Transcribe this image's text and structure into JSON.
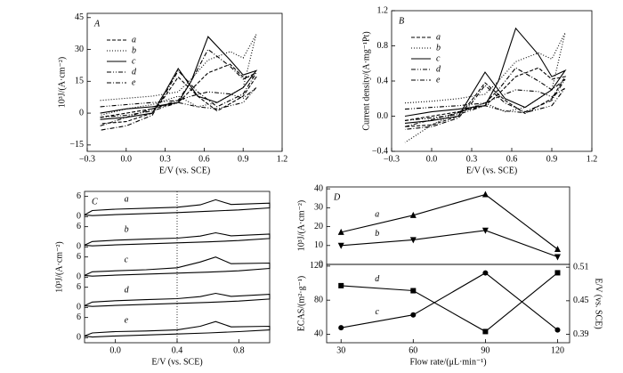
{
  "chart_data": [
    {
      "type": "line",
      "label": "A",
      "xlabel": "E/V (vs. SCE)",
      "ylabel": "10³J/(A·cm⁻²)",
      "xlim": [
        -0.3,
        1.2
      ],
      "xticks": [
        {
          "value": -0.3,
          "label": "−0.3"
        },
        {
          "value": 0,
          "label": "0.0"
        },
        0.3,
        0.6,
        0.9,
        1.2
      ],
      "ylim": [
        -18,
        47
      ],
      "yticks": [
        {
          "value": -15,
          "label": "−15"
        },
        0,
        15,
        30,
        45
      ],
      "legend": "upper left",
      "series": [
        {
          "name": "a",
          "color": "#000",
          "dash": "4,2",
          "x": [
            -0.2,
            0,
            0.2,
            0.4,
            0.5,
            0.63,
            0.8,
            0.9,
            1.0,
            0.9,
            0.7,
            0.55,
            0.4,
            0.3,
            0.2,
            0,
            -0.2
          ],
          "values": [
            -2,
            0,
            2,
            5,
            11,
            19,
            23,
            17,
            17,
            8,
            1,
            8,
            17,
            8,
            0,
            -4,
            -5
          ]
        },
        {
          "name": "b",
          "color": "#000",
          "dash": "1,2",
          "x": [
            -0.2,
            0,
            0.2,
            0.4,
            0.5,
            0.63,
            0.8,
            0.9,
            1.0,
            0.9,
            0.7,
            0.55,
            0.4,
            0.3,
            0.2,
            0,
            -0.2
          ],
          "values": [
            6,
            7,
            8,
            10,
            16,
            25,
            29,
            26,
            37,
            12,
            5,
            3,
            8,
            6,
            4,
            2,
            -1
          ]
        },
        {
          "name": "c",
          "color": "#000",
          "dash": "",
          "x": [
            -0.2,
            0,
            0.2,
            0.4,
            0.5,
            0.63,
            0.8,
            0.9,
            1.0,
            0.9,
            0.7,
            0.55,
            0.4,
            0.3,
            0.2,
            0,
            -0.2
          ],
          "values": [
            0,
            2,
            3,
            5,
            15,
            36,
            25,
            18,
            20,
            12,
            5,
            8,
            21,
            10,
            0,
            -2,
            -3
          ]
        },
        {
          "name": "d",
          "color": "#000",
          "dash": "5,2,1,2,1,2",
          "x": [
            -0.2,
            0,
            0.2,
            0.4,
            0.5,
            0.63,
            0.8,
            0.9,
            1.0,
            0.9,
            0.7,
            0.55,
            0.4,
            0.3,
            0.2,
            0,
            -0.2
          ],
          "values": [
            3,
            4,
            5,
            6,
            8,
            10,
            9,
            7,
            12,
            5,
            2,
            3,
            5,
            3,
            1,
            -1,
            -2
          ]
        },
        {
          "name": "e",
          "color": "#000",
          "dash": "5,2,1,2",
          "x": [
            -0.2,
            0,
            0.2,
            0.4,
            0.5,
            0.63,
            0.8,
            0.9,
            1.0,
            0.9,
            0.7,
            0.55,
            0.4,
            0.3,
            0.2,
            0,
            -0.2
          ],
          "values": [
            -6,
            -2,
            2,
            6,
            15,
            30,
            22,
            16,
            19,
            9,
            3,
            10,
            20,
            9,
            -1,
            -6,
            -8
          ]
        }
      ]
    },
    {
      "type": "line",
      "label": "B",
      "xlabel": "E/V (vs. SCE)",
      "ylabel": "Current density/(A·mg⁻¹Pt)",
      "xlim": [
        -0.3,
        1.2
      ],
      "xticks": [
        {
          "value": -0.3,
          "label": "−0.3"
        },
        {
          "value": 0,
          "label": "0.0"
        },
        0.3,
        0.6,
        0.9,
        1.2
      ],
      "ylim": [
        -0.4,
        1.2
      ],
      "yticks": [
        {
          "value": -0.4,
          "label": "−0.4"
        },
        {
          "value": 0,
          "label": "0.0"
        },
        0.4,
        0.8,
        1.2
      ],
      "legend": "upper left",
      "series": [
        {
          "name": "a",
          "color": "#000",
          "dash": "4,2",
          "x": [
            -0.2,
            0,
            0.2,
            0.4,
            0.5,
            0.63,
            0.8,
            0.9,
            1.0,
            0.9,
            0.7,
            0.55,
            0.4,
            0.3,
            0.2,
            0,
            -0.2
          ],
          "values": [
            -0.05,
            0,
            0.05,
            0.12,
            0.25,
            0.45,
            0.55,
            0.42,
            0.45,
            0.2,
            0.03,
            0.18,
            0.38,
            0.18,
            0,
            -0.1,
            -0.12
          ]
        },
        {
          "name": "b",
          "color": "#000",
          "dash": "1,2",
          "x": [
            -0.2,
            0,
            0.2,
            0.4,
            0.5,
            0.63,
            0.8,
            0.9,
            1.0,
            0.9,
            0.7,
            0.55,
            0.4,
            0.3,
            0.2,
            0,
            -0.2
          ],
          "values": [
            0.15,
            0.17,
            0.2,
            0.25,
            0.4,
            0.62,
            0.72,
            0.65,
            0.95,
            0.3,
            0.1,
            0.05,
            0.15,
            0.1,
            0.05,
            -0.1,
            -0.3
          ]
        },
        {
          "name": "c",
          "color": "#000",
          "dash": "",
          "x": [
            -0.2,
            0,
            0.2,
            0.4,
            0.5,
            0.63,
            0.8,
            0.9,
            1.0,
            0.9,
            0.7,
            0.55,
            0.4,
            0.3,
            0.2,
            0,
            -0.2
          ],
          "values": [
            0,
            0.05,
            0.08,
            0.12,
            0.4,
            1.0,
            0.7,
            0.45,
            0.52,
            0.3,
            0.1,
            0.2,
            0.5,
            0.25,
            0,
            -0.05,
            -0.08
          ]
        },
        {
          "name": "d",
          "color": "#000",
          "dash": "5,2,1,2,1,2",
          "x": [
            -0.2,
            0,
            0.2,
            0.4,
            0.5,
            0.63,
            0.8,
            0.9,
            1.0,
            0.9,
            0.7,
            0.55,
            0.4,
            0.3,
            0.2,
            0,
            -0.2
          ],
          "values": [
            0.08,
            0.1,
            0.12,
            0.15,
            0.22,
            0.3,
            0.28,
            0.22,
            0.32,
            0.12,
            0.04,
            0.06,
            0.12,
            0.07,
            0.02,
            -0.02,
            -0.05
          ]
        },
        {
          "name": "e",
          "color": "#000",
          "dash": "5,2,1,2",
          "x": [
            -0.2,
            0,
            0.2,
            0.4,
            0.5,
            0.63,
            0.8,
            0.9,
            1.0,
            0.9,
            0.7,
            0.55,
            0.4,
            0.3,
            0.2,
            0,
            -0.2
          ],
          "values": [
            -0.12,
            -0.04,
            0.04,
            0.15,
            0.3,
            0.55,
            0.4,
            0.3,
            0.42,
            0.18,
            0.05,
            0.15,
            0.35,
            0.15,
            -0.02,
            -0.12,
            -0.15
          ]
        }
      ]
    },
    {
      "type": "stacked-line",
      "label": "C",
      "xlabel": "E/V (vs. SCE)",
      "ylabel": "10³J/(A·cm⁻²)",
      "xlim": [
        -0.2,
        1.0
      ],
      "xticks": [
        {
          "value": 0,
          "label": "0.0"
        },
        0.4,
        0.8
      ],
      "vline": 0.4,
      "series": [
        {
          "name": "a",
          "color": "#000",
          "ylim": [
            -1.5,
            7.5
          ],
          "yticks": [
            0,
            6
          ],
          "x": [
            -0.2,
            -0.15,
            0,
            0.2,
            0.4,
            0.55,
            0.65,
            0.75,
            1.0,
            1.0,
            0.8,
            0.6,
            0.4,
            0.2,
            0,
            -0.15,
            -0.2
          ],
          "values": [
            0.5,
            1.8,
            2.2,
            2.5,
            2.8,
            3.5,
            5.0,
            3.6,
            4.0,
            2.6,
            2.0,
            1.6,
            1.2,
            0.9,
            0.6,
            0.3,
            0.5
          ]
        },
        {
          "name": "b",
          "color": "#000",
          "ylim": [
            -1.5,
            7.5
          ],
          "yticks": [
            0,
            6
          ],
          "x": [
            -0.2,
            -0.15,
            0,
            0.2,
            0.4,
            0.55,
            0.65,
            0.75,
            1.0,
            1.0,
            0.8,
            0.6,
            0.4,
            0.2,
            0,
            -0.15,
            -0.2
          ],
          "values": [
            0.5,
            1.6,
            2.0,
            2.3,
            2.6,
            3.2,
            4.2,
            3.3,
            3.8,
            2.5,
            1.9,
            1.5,
            1.2,
            0.9,
            0.6,
            0.3,
            0.5
          ]
        },
        {
          "name": "c",
          "color": "#000",
          "ylim": [
            -1.5,
            7.5
          ],
          "yticks": [
            0,
            6
          ],
          "x": [
            -0.2,
            -0.15,
            0,
            0.2,
            0.4,
            0.55,
            0.65,
            0.75,
            1.0,
            1.0,
            0.8,
            0.6,
            0.4,
            0.2,
            0,
            -0.15,
            -0.2
          ],
          "values": [
            0.5,
            1.6,
            1.9,
            2.2,
            2.8,
            4.5,
            6.0,
            4.0,
            4.2,
            2.6,
            1.9,
            1.5,
            1.2,
            0.9,
            0.6,
            0.3,
            0.5
          ]
        },
        {
          "name": "d",
          "color": "#000",
          "ylim": [
            -1.5,
            7.5
          ],
          "yticks": [
            0,
            6
          ],
          "x": [
            -0.2,
            -0.15,
            0,
            0.2,
            0.4,
            0.55,
            0.65,
            0.75,
            1.0,
            1.0,
            0.8,
            0.6,
            0.4,
            0.2,
            0,
            -0.15,
            -0.2
          ],
          "values": [
            0.5,
            1.6,
            2.0,
            2.3,
            2.6,
            3.2,
            4.2,
            3.3,
            3.9,
            2.5,
            1.9,
            1.5,
            1.2,
            0.9,
            0.6,
            0.3,
            0.5
          ]
        },
        {
          "name": "e",
          "color": "#000",
          "ylim": [
            -1.5,
            7.5
          ],
          "yticks": [
            0,
            6
          ],
          "x": [
            -0.2,
            -0.15,
            0,
            0.2,
            0.4,
            0.55,
            0.65,
            0.75,
            1.0,
            1.0,
            0.8,
            0.6,
            0.4,
            0.2,
            0,
            -0.15,
            -0.2
          ],
          "values": [
            0.5,
            1.4,
            1.8,
            2.0,
            2.3,
            3.4,
            4.8,
            3.2,
            3.4,
            2.3,
            1.8,
            1.4,
            1.1,
            0.8,
            0.5,
            0.2,
            0.5
          ]
        }
      ]
    },
    {
      "type": "line-marker",
      "label": "D",
      "ylabel": "10³J/(A·cm⁻²)",
      "xlim": [
        24,
        125
      ],
      "ylim": [
        0,
        41
      ],
      "yticks": [
        0,
        10,
        20,
        30,
        40
      ],
      "series": [
        {
          "name": "a",
          "color": "#000",
          "marker": "triangle-up",
          "x": [
            30,
            60,
            90,
            120
          ],
          "values": [
            17,
            26,
            37,
            8
          ]
        },
        {
          "name": "b",
          "color": "#000",
          "marker": "triangle-down",
          "x": [
            30,
            60,
            90,
            120
          ],
          "values": [
            10,
            13,
            18,
            4
          ]
        }
      ]
    },
    {
      "type": "line-marker",
      "xlabel": "Flow rate/(μL·min⁻¹)",
      "ylabel": "ECAS/(m²·g⁻¹)",
      "y2label": "E/V (vs. SCE)",
      "xlim": [
        24,
        125
      ],
      "xticks": [
        30,
        60,
        90,
        120
      ],
      "ylim": [
        30,
        122
      ],
      "yticks": [
        40,
        80,
        120
      ],
      "y2lim": [
        0.375,
        0.515
      ],
      "y2ticks": [
        0.39,
        0.45,
        0.51
      ],
      "series": [
        {
          "name": "d",
          "color": "#000",
          "marker": "square",
          "axis": "y2",
          "x": [
            30,
            60,
            90,
            120
          ],
          "values": [
            0.477,
            0.468,
            0.395,
            0.5
          ]
        },
        {
          "name": "c",
          "color": "#000",
          "marker": "circle",
          "x": [
            30,
            60,
            90,
            120
          ],
          "values": [
            47.6,
            62.7,
            112,
            45
          ]
        }
      ]
    }
  ]
}
